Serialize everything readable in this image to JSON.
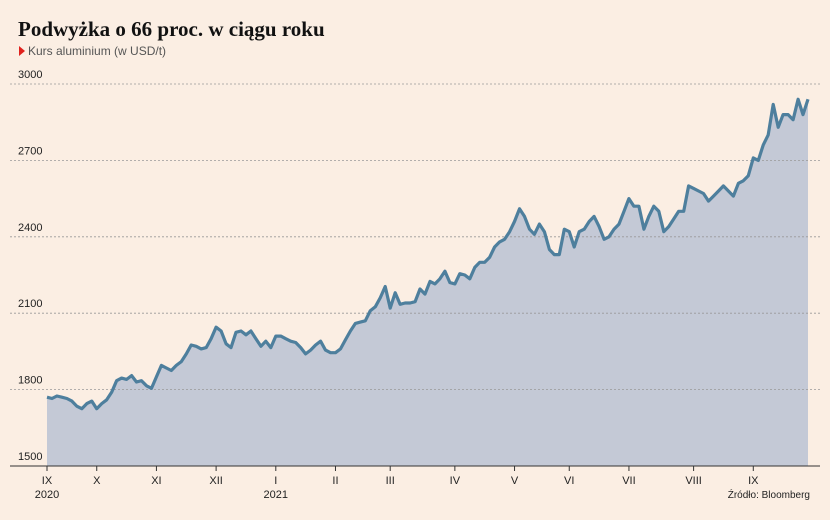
{
  "chart_data": {
    "type": "area",
    "title": "Podwyżka o 66 proc. w ciągu roku",
    "subtitle": "Kurs aluminium (w USD/t)",
    "source": "Źródło: Bloomberg",
    "line_color": "#4e7f9d",
    "fill_color": "#c4c9d6",
    "grid": true,
    "ylim": [
      1500,
      3000
    ],
    "yticks": [
      1500,
      1800,
      2100,
      2400,
      2700,
      3000
    ],
    "xlim": [
      0,
      153
    ],
    "xticks": [
      {
        "value": 0,
        "label": "IX"
      },
      {
        "value": 10,
        "label": "X"
      },
      {
        "value": 22,
        "label": "XI"
      },
      {
        "value": 34,
        "label": "XII"
      },
      {
        "value": 46,
        "label": "I"
      },
      {
        "value": 58,
        "label": "II"
      },
      {
        "value": 69,
        "label": "III"
      },
      {
        "value": 82,
        "label": "IV"
      },
      {
        "value": 94,
        "label": "V"
      },
      {
        "value": 105,
        "label": "VI"
      },
      {
        "value": 117,
        "label": "VII"
      },
      {
        "value": 130,
        "label": "VIII"
      },
      {
        "value": 142,
        "label": "IX"
      }
    ],
    "year_labels": [
      {
        "value": 0,
        "label": "2020"
      },
      {
        "value": 46,
        "label": "2021"
      }
    ],
    "values": [
      1770,
      1765,
      1775,
      1770,
      1765,
      1755,
      1735,
      1725,
      1745,
      1755,
      1725,
      1745,
      1760,
      1790,
      1835,
      1845,
      1840,
      1855,
      1830,
      1835,
      1815,
      1805,
      1850,
      1895,
      1885,
      1875,
      1895,
      1910,
      1940,
      1975,
      1970,
      1960,
      1965,
      2000,
      2045,
      2030,
      1980,
      1965,
      2025,
      2030,
      2015,
      2030,
      2000,
      1970,
      1990,
      1965,
      2010,
      2010,
      2000,
      1990,
      1985,
      1965,
      1940,
      1955,
      1975,
      1990,
      1955,
      1945,
      1945,
      1960,
      1995,
      2030,
      2060,
      2065,
      2070,
      2110,
      2125,
      2160,
      2205,
      2120,
      2180,
      2135,
      2140,
      2140,
      2145,
      2195,
      2175,
      2225,
      2215,
      2235,
      2265,
      2220,
      2215,
      2255,
      2250,
      2235,
      2280,
      2300,
      2300,
      2320,
      2360,
      2380,
      2390,
      2420,
      2460,
      2510,
      2480,
      2430,
      2410,
      2450,
      2420,
      2350,
      2330,
      2330,
      2430,
      2420,
      2360,
      2420,
      2430,
      2460,
      2480,
      2440,
      2390,
      2400,
      2430,
      2450,
      2500,
      2550,
      2520,
      2520,
      2430,
      2480,
      2520,
      2500,
      2420,
      2440,
      2470,
      2500,
      2500,
      2600,
      2590,
      2580,
      2570,
      2540,
      2560,
      2580,
      2600,
      2580,
      2560,
      2610,
      2620,
      2640,
      2710,
      2700,
      2760,
      2800,
      2920,
      2830,
      2880,
      2880,
      2860,
      2940,
      2880,
      2940
    ]
  }
}
